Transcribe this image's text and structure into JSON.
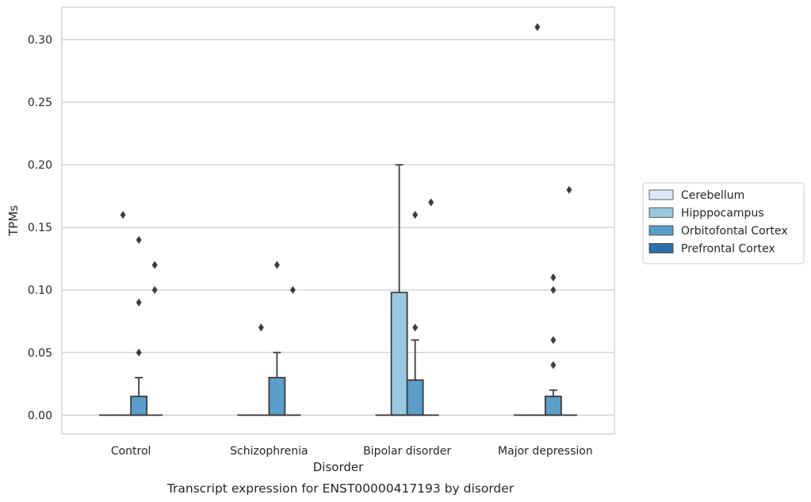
{
  "chart_data": {
    "type": "box",
    "caption": "Transcript expression for ENST00000417193 by disorder",
    "xlabel": "Disorder",
    "ylabel": "TPMs",
    "ylim": [
      -0.015,
      0.326
    ],
    "yticks": [
      "0.00",
      "0.05",
      "0.10",
      "0.15",
      "0.20",
      "0.25",
      "0.30"
    ],
    "grid": "horizontal",
    "legend_position": "right",
    "categories": [
      "Control",
      "Schizophrenia",
      "Bipolar disorder",
      "Major depression"
    ],
    "series": [
      {
        "name": "Cerebellum",
        "color": "#dbe9f6"
      },
      {
        "name": "Hipppocampus",
        "color": "#9ac8e0"
      },
      {
        "name": "Orbitofontal Cortex",
        "color": "#5a9ec9"
      },
      {
        "name": "Prefrontal Cortex",
        "color": "#2b6ea8"
      }
    ],
    "boxes": [
      {
        "category": "Control",
        "series": "Cerebellum",
        "q1": 0,
        "median": 0,
        "q3": 0,
        "whisker_low": 0,
        "whisker_high": 0,
        "outliers": []
      },
      {
        "category": "Control",
        "series": "Hipppocampus",
        "q1": 0,
        "median": 0,
        "q3": 0,
        "whisker_low": 0,
        "whisker_high": 0,
        "outliers": [
          0.16
        ]
      },
      {
        "category": "Control",
        "series": "Orbitofontal Cortex",
        "q1": 0,
        "median": 0,
        "q3": 0.015,
        "whisker_low": 0,
        "whisker_high": 0.03,
        "outliers": [
          0.14,
          0.09,
          0.05
        ]
      },
      {
        "category": "Control",
        "series": "Prefrontal Cortex",
        "q1": 0,
        "median": 0,
        "q3": 0,
        "whisker_low": 0,
        "whisker_high": 0,
        "outliers": [
          0.12,
          0.1
        ]
      },
      {
        "category": "Schizophrenia",
        "series": "Cerebellum",
        "q1": 0,
        "median": 0,
        "q3": 0,
        "whisker_low": 0,
        "whisker_high": 0,
        "outliers": []
      },
      {
        "category": "Schizophrenia",
        "series": "Hipppocampus",
        "q1": 0,
        "median": 0,
        "q3": 0,
        "whisker_low": 0,
        "whisker_high": 0,
        "outliers": [
          0.07
        ]
      },
      {
        "category": "Schizophrenia",
        "series": "Orbitofontal Cortex",
        "q1": 0,
        "median": 0,
        "q3": 0.03,
        "whisker_low": 0,
        "whisker_high": 0.05,
        "outliers": [
          0.12
        ]
      },
      {
        "category": "Schizophrenia",
        "series": "Prefrontal Cortex",
        "q1": 0,
        "median": 0,
        "q3": 0,
        "whisker_low": 0,
        "whisker_high": 0,
        "outliers": [
          0.1
        ]
      },
      {
        "category": "Bipolar disorder",
        "series": "Cerebellum",
        "q1": 0,
        "median": 0,
        "q3": 0,
        "whisker_low": 0,
        "whisker_high": 0,
        "outliers": []
      },
      {
        "category": "Bipolar disorder",
        "series": "Hipppocampus",
        "q1": 0,
        "median": 0,
        "q3": 0.098,
        "whisker_low": 0,
        "whisker_high": 0.2,
        "outliers": []
      },
      {
        "category": "Bipolar disorder",
        "series": "Orbitofontal Cortex",
        "q1": 0,
        "median": 0,
        "q3": 0.028,
        "whisker_low": 0,
        "whisker_high": 0.06,
        "outliers": [
          0.16,
          0.07
        ]
      },
      {
        "category": "Bipolar disorder",
        "series": "Prefrontal Cortex",
        "q1": 0,
        "median": 0,
        "q3": 0,
        "whisker_low": 0,
        "whisker_high": 0,
        "outliers": [
          0.17
        ]
      },
      {
        "category": "Major depression",
        "series": "Cerebellum",
        "q1": 0,
        "median": 0,
        "q3": 0,
        "whisker_low": 0,
        "whisker_high": 0,
        "outliers": []
      },
      {
        "category": "Major depression",
        "series": "Hipppocampus",
        "q1": 0,
        "median": 0,
        "q3": 0,
        "whisker_low": 0,
        "whisker_high": 0,
        "outliers": [
          0.31
        ]
      },
      {
        "category": "Major depression",
        "series": "Orbitofontal Cortex",
        "q1": 0,
        "median": 0,
        "q3": 0.015,
        "whisker_low": 0,
        "whisker_high": 0.02,
        "outliers": [
          0.11,
          0.1,
          0.06,
          0.04
        ]
      },
      {
        "category": "Major depression",
        "series": "Prefrontal Cortex",
        "q1": 0,
        "median": 0,
        "q3": 0,
        "whisker_low": 0,
        "whisker_high": 0,
        "outliers": [
          0.18
        ]
      }
    ]
  }
}
